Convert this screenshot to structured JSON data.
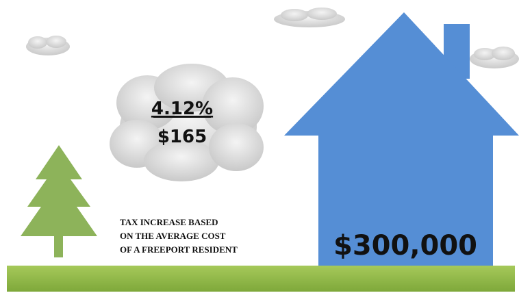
{
  "infographic": {
    "cloud_percent": "4.12%",
    "cloud_amount": "$165",
    "caption_lines": [
      "TAX INCREASE BASED",
      "ON THE AVERAGE COST",
      "OF A FREEPORT RESIDENT"
    ],
    "house_value": "$300,000"
  }
}
